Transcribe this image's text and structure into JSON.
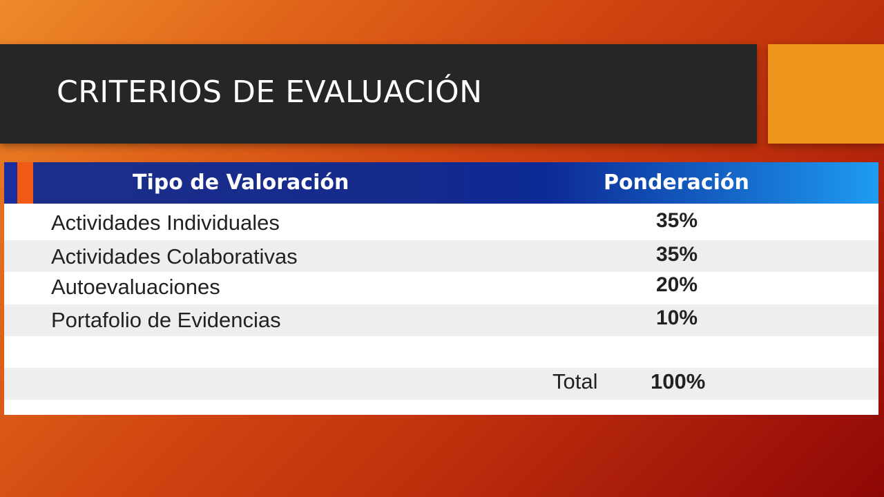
{
  "slide": {
    "title": "CRITERIOS DE EVALUACIÓN",
    "background_colors": [
      "#ee8a2a",
      "#cf4410",
      "#8e0806"
    ],
    "accent_color": "#ef951b",
    "title_bar_color": "#262626"
  },
  "table": {
    "headers": [
      "Tipo de Valoración",
      "Ponderación"
    ],
    "header_colors": [
      "#152a8c",
      "#1e9cf2"
    ],
    "rows": [
      {
        "label": "Actividades Individuales",
        "value": "35%"
      },
      {
        "label": "Actividades Colaborativas",
        "value": "35%"
      },
      {
        "label": "Autoevaluaciones",
        "value": "20%"
      },
      {
        "label": "Portafolio de Evidencias",
        "value": "10%"
      }
    ],
    "total": {
      "label": "Total",
      "value": "100%"
    }
  }
}
